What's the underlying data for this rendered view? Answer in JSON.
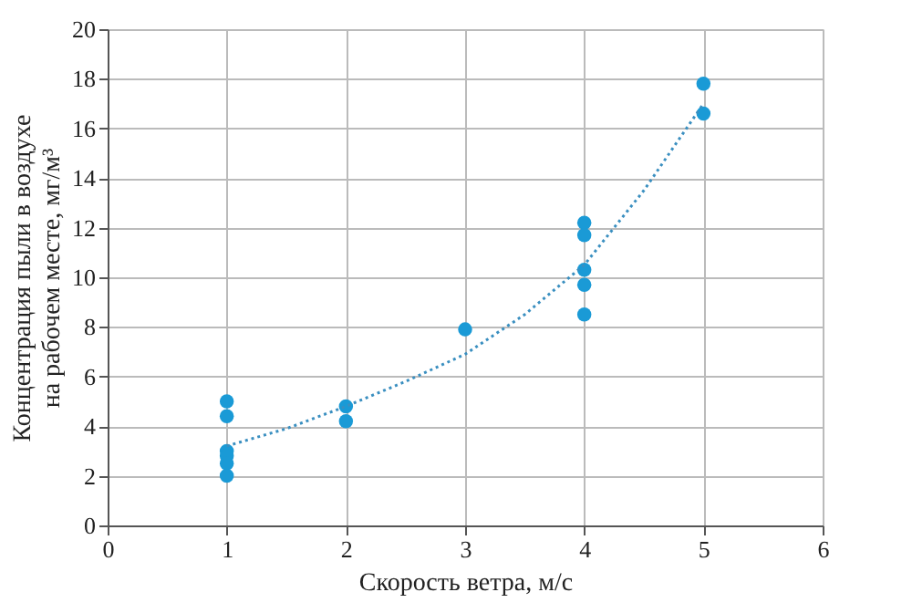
{
  "chart_data": {
    "type": "scatter",
    "xlabel": "Скорость ветра, м/с",
    "ylabel": "Концентрация пыли в воздухе\nна рабочем месте, мг/м³",
    "xlim": [
      0,
      6
    ],
    "xticks": [
      0,
      1,
      2,
      3,
      4,
      5,
      6
    ],
    "ylim": [
      0,
      20
    ],
    "yticks": [
      0,
      2,
      4,
      6,
      8,
      10,
      12,
      14,
      16,
      18,
      20
    ],
    "grid": true,
    "series": [
      {
        "color": "#1a9ad6",
        "marker": "circle",
        "x": [
          1,
          1,
          1,
          1,
          1,
          1,
          2,
          2,
          3,
          4,
          4,
          4,
          4,
          4,
          5,
          5
        ],
        "values": [
          5.0,
          4.4,
          3.0,
          2.8,
          2.5,
          2.0,
          4.8,
          4.2,
          7.9,
          12.2,
          11.7,
          10.3,
          9.7,
          8.5,
          17.8,
          16.6
        ]
      },
      {
        "type": "line",
        "color": "#3a8fc0",
        "line_style": "dotted",
        "marker": "none",
        "x": [
          1,
          1.5,
          2,
          2.5,
          3,
          3.5,
          4,
          4.5,
          5
        ],
        "values": [
          3.2,
          3.9,
          4.8,
          5.8,
          6.9,
          8.5,
          10.5,
          13.5,
          17.0
        ]
      }
    ]
  }
}
